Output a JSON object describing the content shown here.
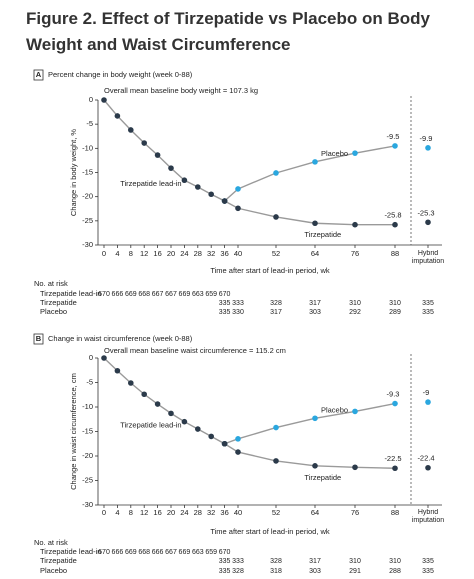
{
  "figure_title": "Figure 2. Effect of Tirzepatide vs Placebo on Body Weight and Waist Circumference",
  "chart_data": [
    {
      "type": "line",
      "panel": "A",
      "title": "Percent change in body weight (week 0-88)",
      "annotation": "Overall mean baseline body weight = 107.3 kg",
      "ylabel": "Change in body weight, %",
      "xlabel": "Time after start of lead-in period, wk",
      "categories": [
        "0",
        "4",
        "8",
        "12",
        "16",
        "20",
        "24",
        "28",
        "32",
        "36",
        "40",
        "52",
        "64",
        "76",
        "88",
        "Hybrid imputation"
      ],
      "series": [
        {
          "name": "Placebo",
          "color": "#2aa7df",
          "values": [
            null,
            null,
            null,
            null,
            null,
            null,
            null,
            null,
            null,
            -20.9,
            -18.4,
            -15.1,
            -12.8,
            -11,
            -9.5,
            -9.9
          ],
          "data_labels": [
            14,
            15
          ]
        },
        {
          "name": "Tirzepatide",
          "color": "#2b3a4a",
          "values": [
            null,
            null,
            null,
            null,
            null,
            null,
            null,
            null,
            null,
            -20.9,
            -22.4,
            -24.2,
            -25.5,
            -25.8,
            -25.8,
            -25.3
          ],
          "data_labels": [
            14,
            15
          ]
        },
        {
          "name": "Tirzepatide lead-in",
          "color": "#2b3a4a",
          "values": [
            0,
            -3.3,
            -6.2,
            -8.9,
            -11.4,
            -14.1,
            -16.6,
            -18,
            -19.5,
            -20.9,
            null,
            null,
            null,
            null,
            null,
            null
          ],
          "data_labels": []
        }
      ],
      "ylim": [
        -30,
        0
      ],
      "yticks": [
        0,
        -5,
        -10,
        -15,
        -20,
        -25,
        -30
      ],
      "at_risk": {
        "title": "No. at risk",
        "rows": [
          {
            "name": "Tirzepatide lead-in",
            "values": [
              670,
              666,
              669,
              668,
              667,
              667,
              669,
              663,
              659,
              670,
              null,
              null,
              null,
              null,
              null,
              null
            ]
          },
          {
            "name": "Tirzepatide",
            "values": [
              null,
              null,
              null,
              null,
              null,
              null,
              null,
              null,
              null,
              335,
              333,
              328,
              317,
              310,
              310,
              335
            ]
          },
          {
            "name": "Placebo",
            "values": [
              null,
              null,
              null,
              null,
              null,
              null,
              null,
              null,
              null,
              335,
              330,
              317,
              303,
              292,
              289,
              335
            ]
          }
        ]
      }
    },
    {
      "type": "line",
      "panel": "B",
      "title": "Change in waist circumference (week 0-88)",
      "annotation": "Overall mean baseline waist circumference = 115.2 cm",
      "ylabel": "Change in waist circumference, cm",
      "xlabel": "Time after start of lead-in period, wk",
      "categories": [
        "0",
        "4",
        "8",
        "12",
        "16",
        "20",
        "24",
        "28",
        "32",
        "36",
        "40",
        "52",
        "64",
        "76",
        "88",
        "Hybrid imputation"
      ],
      "series": [
        {
          "name": "Placebo",
          "color": "#2aa7df",
          "values": [
            null,
            null,
            null,
            null,
            null,
            null,
            null,
            null,
            null,
            -17.5,
            -16.5,
            -14.2,
            -12.3,
            -10.9,
            -9.3,
            -9.0
          ],
          "data_labels": [
            14,
            15
          ]
        },
        {
          "name": "Tirzepatide",
          "color": "#2b3a4a",
          "values": [
            null,
            null,
            null,
            null,
            null,
            null,
            null,
            null,
            null,
            -17.5,
            -19.2,
            -21,
            -22,
            -22.3,
            -22.5,
            -22.4
          ],
          "data_labels": [
            14,
            15
          ]
        },
        {
          "name": "Tirzepatide lead-in",
          "color": "#2b3a4a",
          "values": [
            0,
            -2.6,
            -5.1,
            -7.4,
            -9.4,
            -11.3,
            -13,
            -14.5,
            -16,
            -17.5,
            null,
            null,
            null,
            null,
            null,
            null
          ],
          "data_labels": []
        }
      ],
      "ylim": [
        -30,
        0
      ],
      "yticks": [
        0,
        -5,
        -10,
        -15,
        -20,
        -25,
        -30
      ],
      "at_risk": {
        "title": "No. at risk",
        "rows": [
          {
            "name": "Tirzepatide lead-in",
            "values": [
              670,
              666,
              669,
              668,
              666,
              667,
              669,
              663,
              659,
              670,
              null,
              null,
              null,
              null,
              null,
              null
            ]
          },
          {
            "name": "Tirzepatide",
            "values": [
              null,
              null,
              null,
              null,
              null,
              null,
              null,
              null,
              null,
              335,
              333,
              328,
              317,
              310,
              310,
              335
            ]
          },
          {
            "name": "Placebo",
            "values": [
              null,
              null,
              null,
              null,
              null,
              null,
              null,
              null,
              null,
              335,
              328,
              318,
              303,
              291,
              288,
              335
            ]
          }
        ]
      }
    }
  ]
}
